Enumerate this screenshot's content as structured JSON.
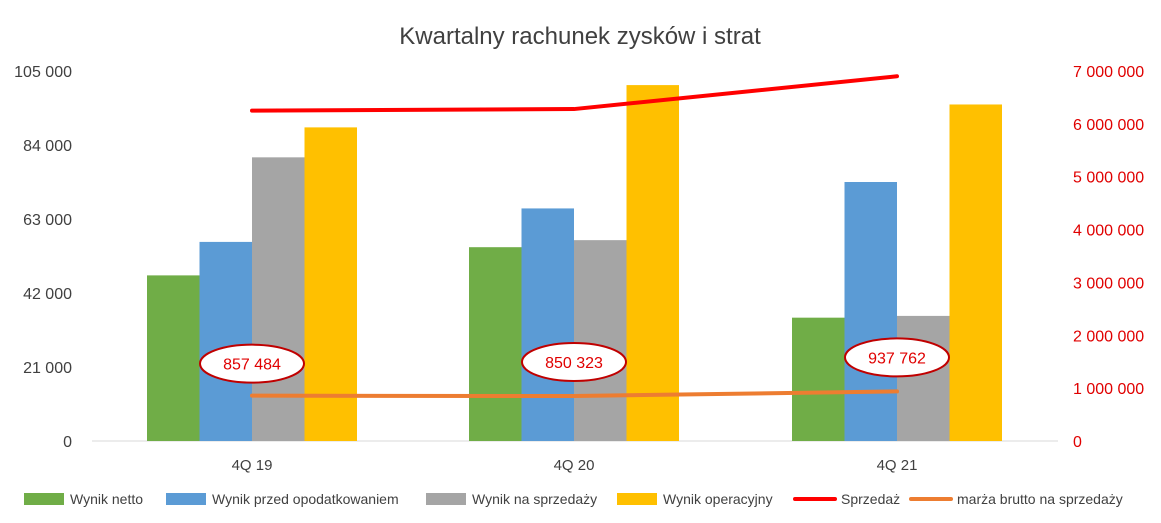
{
  "chart_data": {
    "type": "bar",
    "title": "Kwartalny rachunek zysków i strat",
    "categories": [
      "4Q 19",
      "4Q 20",
      "4Q 21"
    ],
    "left_axis": {
      "min": 0,
      "max": 105000,
      "ticks": [
        0,
        21000,
        42000,
        63000,
        84000,
        105000
      ],
      "tick_labels": [
        "0",
        "21 000",
        "42 000",
        "63 000",
        "84 000",
        "105 000"
      ]
    },
    "right_axis": {
      "min": 0,
      "max": 7000000,
      "ticks": [
        0,
        1000000,
        2000000,
        3000000,
        4000000,
        5000000,
        6000000,
        7000000
      ],
      "tick_labels": [
        "0",
        "1 000 000",
        "2 000 000",
        "3 000 000",
        "4 000 000",
        "5 000 000",
        "6 000 000",
        "7 000 000"
      ],
      "color": "#e00000"
    },
    "series": [
      {
        "name": "Wynik netto",
        "kind": "bar",
        "axis": "left",
        "color": "#70ad47",
        "values": [
          47000,
          55000,
          35000
        ]
      },
      {
        "name": "Wynik przed opodatkowaniem",
        "kind": "bar",
        "axis": "left",
        "color": "#5b9bd5",
        "values": [
          56500,
          66000,
          73500
        ]
      },
      {
        "name": "Wynik na sprzedaży",
        "kind": "bar",
        "axis": "left",
        "color": "#a5a5a5",
        "values": [
          80500,
          57000,
          35500
        ]
      },
      {
        "name": "Wynik operacyjny",
        "kind": "bar",
        "axis": "left",
        "color": "#ffc000",
        "values": [
          89000,
          101000,
          95500
        ]
      },
      {
        "name": "Sprzedaż",
        "kind": "line",
        "axis": "right",
        "color": "#ff0000",
        "values": [
          6250000,
          6280000,
          6900000
        ]
      },
      {
        "name": "marża brutto na sprzedaży",
        "kind": "line",
        "axis": "right",
        "color": "#ed7d31",
        "values": [
          857484,
          850323,
          937762
        ]
      }
    ],
    "data_labels": {
      "series": "marża brutto na sprzedaży",
      "labels": [
        "857 484",
        "850 323",
        "937 762"
      ],
      "color": "#e00000"
    },
    "legend_position": "bottom",
    "grid": false
  }
}
